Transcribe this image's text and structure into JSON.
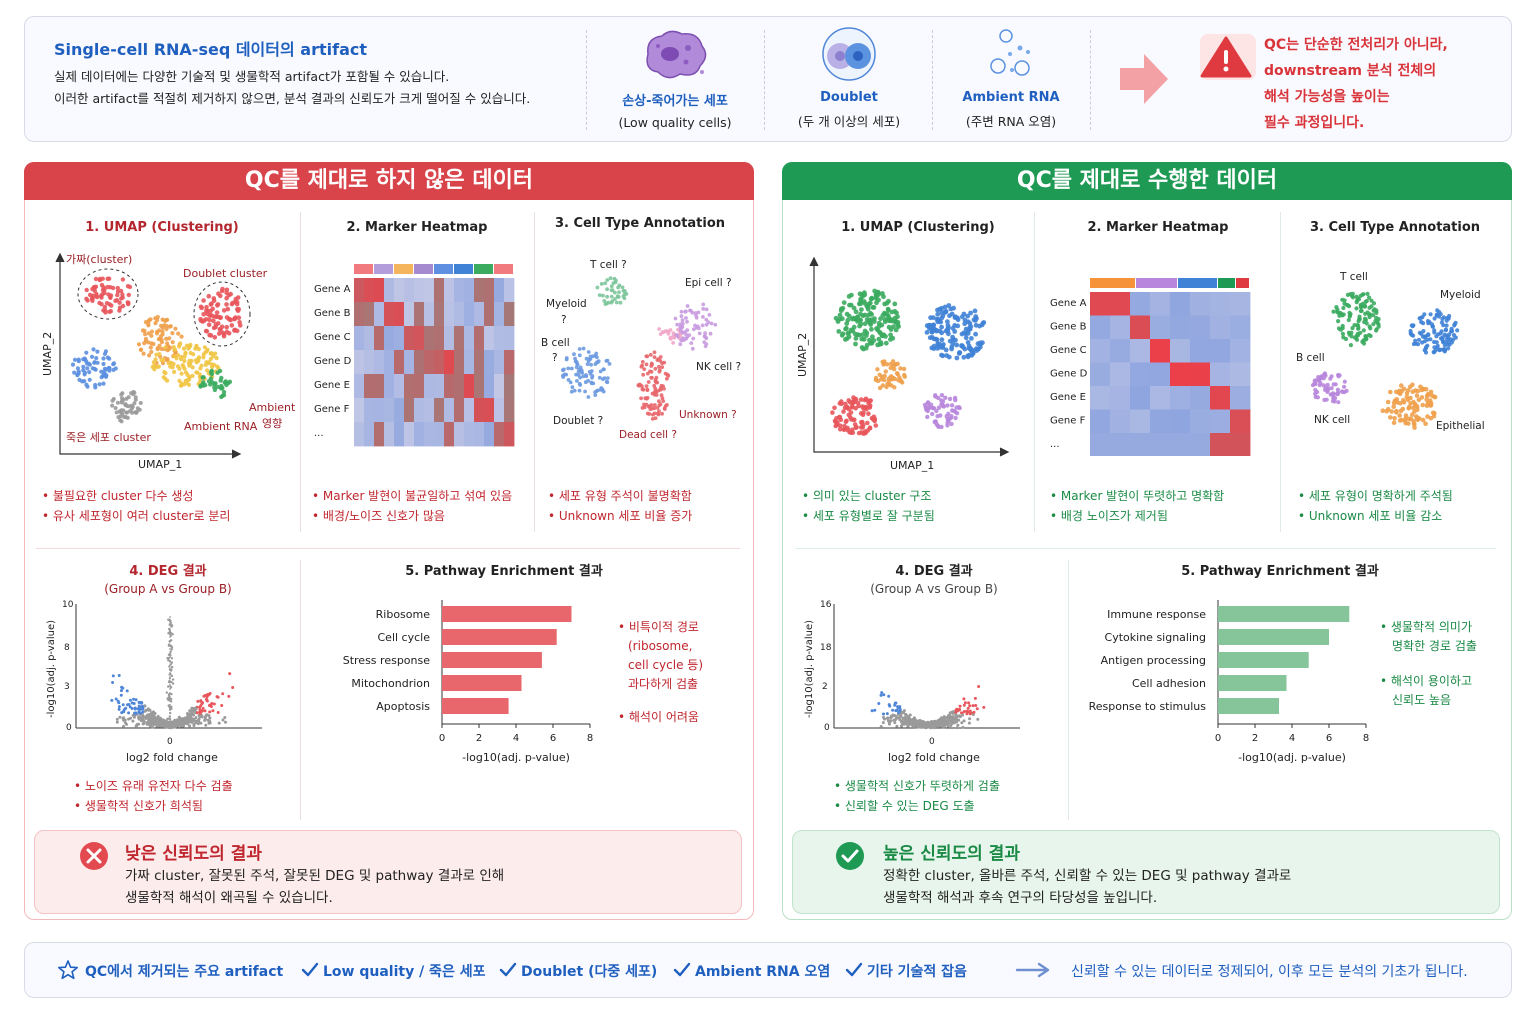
{
  "top": {
    "title": "Single-cell RNA-seq 데이터의 artifact",
    "desc1": "실제 데이터에는 다양한 기술적 및 생물학적 artifact가 포함될 수 있습니다.",
    "desc2": "이러한 artifact를 적절히 제거하지 않으면, 분석 결과의 신뢰도가 크게 떨어질 수 있습니다.",
    "artifacts": [
      {
        "name": "손상-죽어가는 세포",
        "sub": "(Low quality cells)",
        "icon": "damaged-cell-icon"
      },
      {
        "name": "Doublet",
        "sub": "(두 개 이상의 세포)",
        "icon": "doublet-icon"
      },
      {
        "name": "Ambient RNA",
        "sub": "(주변 RNA 오염)",
        "icon": "ambient-rna-icon"
      }
    ],
    "warning": [
      "QC는 단순한 전처리가 아니라,",
      "downstream 분석 전체의",
      "해석 가능성을 높이는",
      "필수 과정입니다."
    ]
  },
  "bad": {
    "banner": "QC를 제대로 하지 않은 데이터",
    "umap_title": "1. UMAP (Clustering)",
    "umap_labels": {
      "fake": "가짜(cluster)",
      "doublet": "Doublet cluster",
      "ambient1": "Ambient",
      "ambient2": "영향",
      "ambient_rna": "Ambient RNA",
      "dead": "죽은 세포 cluster",
      "xlabel": "UMAP_1",
      "ylabel": "UMAP_2"
    },
    "umap_bullets": [
      "• 불필요한 cluster 다수 생성",
      "• 유사 세포형이 여러 cluster로 분리"
    ],
    "heatmap_title": "2. Marker Heatmap",
    "genes": [
      "Gene A",
      "Gene B",
      "Gene C",
      "Gene D",
      "Gene E",
      "Gene F",
      "..."
    ],
    "heatmap_bullets": [
      "• Marker 발현이 불균일하고 섞여 있음",
      "• 배경/노이즈 신호가 많음"
    ],
    "anno_title": "3. Cell Type Annotation",
    "anno_labels": {
      "t": "T cell ?",
      "epi": "Epi cell ?",
      "myeloid": "Myeloid",
      "q1": "?",
      "bcell": "B cell",
      "q2": "?",
      "nk": "NK cell ?",
      "unknown": "Unknown ?",
      "doublet": "Doublet ?",
      "dead": "Dead cell ?"
    },
    "anno_bullets": [
      "• 세포 유형 주석이 불명확함",
      "• Unknown 세포 비율 증가"
    ],
    "deg_title": "4. DEG 결과",
    "deg_sub": "(Group A vs Group B)",
    "deg_xlabel": "log2 fold change",
    "deg_ylabel": "-log10(adj. p-value)",
    "deg_yticks": [
      "10",
      "8",
      "3",
      "0"
    ],
    "deg_xtick": "0",
    "deg_bullets": [
      "• 노이즈 유래 유전자 다수 검출",
      "• 생물학적 신호가 희석됨"
    ],
    "path_title": "5. Pathway Enrichment 결과",
    "path_note": [
      "• 비특이적 경로",
      "(ribosome,",
      "cell cycle 등)",
      "과다하게 검출",
      "• 해석이 어려움"
    ],
    "result_title": "낮은 신뢰도의 결과",
    "result_text1": "가짜 cluster, 잘못된 주석, 잘못된 DEG 및 pathway 결과로 인해",
    "result_text2": "생물학적 해석이 왜곡될 수 있습니다."
  },
  "good": {
    "banner": "QC를 제대로 수행한 데이터",
    "umap_title": "1. UMAP (Clustering)",
    "umap_labels": {
      "xlabel": "UMAP_1",
      "ylabel": "UMAP_2"
    },
    "umap_bullets": [
      "• 의미 있는 cluster 구조",
      "• 세포 유형별로 잘 구분됨"
    ],
    "heatmap_title": "2. Marker Heatmap",
    "genes": [
      "Gene A",
      "Gene B",
      "Gene C",
      "Gene D",
      "Gene E",
      "Gene F",
      "..."
    ],
    "heatmap_bullets": [
      "• Marker 발현이 뚜렷하고 명확함",
      "• 배경 노이즈가 제거됨"
    ],
    "anno_title": "3. Cell Type Annotation",
    "anno_labels": {
      "t": "T cell",
      "myeloid": "Myeloid",
      "bcell": "B cell",
      "nk": "NK cell",
      "epi": "Epithelial"
    },
    "anno_bullets": [
      "• 세포 유형이 명확하게 주석됨",
      "• Unknown 세포 비율 감소"
    ],
    "deg_title": "4. DEG 결과",
    "deg_sub": "(Group A vs Group B)",
    "deg_xlabel": "log2 fold change",
    "deg_ylabel": "-log10(adj. p-value)",
    "deg_yticks": [
      "16",
      "18",
      "2",
      "0"
    ],
    "deg_xtick": "0",
    "deg_bullets": [
      "• 생물학적 신호가 뚜렷하게 검출",
      "• 신뢰할 수 있는 DEG 도출"
    ],
    "path_title": "5. Pathway Enrichment 결과",
    "path_note": [
      "• 생물학적 의미가",
      "명확한 경로 검출",
      "• 해석이 용이하고",
      "신뢰도 높음"
    ],
    "result_title": "높은 신뢰도의 결과",
    "result_text1": "정확한 cluster, 올바른 주석, 신뢰할 수 있는 DEG 및 pathway 결과로",
    "result_text2": "생물학적 해석과 후속 연구의 타당성을 높입니다."
  },
  "chart_data": [
    {
      "type": "bar",
      "categories": [
        "Ribosome",
        "Cell cycle",
        "Stress response",
        "Mitochondrion",
        "Apoptosis"
      ],
      "values": [
        7.0,
        6.2,
        5.4,
        4.3,
        3.6
      ],
      "xlabel": "-log10(adj. p-value)",
      "xlim": [
        0,
        8
      ],
      "xticks": [
        "0",
        "2",
        "4",
        "6",
        "8"
      ],
      "color": "#e8676c"
    },
    {
      "type": "bar",
      "categories": [
        "Immune response",
        "Cytokine signaling",
        "Antigen processing",
        "Cell adhesion",
        "Response to stimulus"
      ],
      "values": [
        7.1,
        6.0,
        4.9,
        3.7,
        3.3
      ],
      "xlabel": "-log10(adj. p-value)",
      "xlim": [
        0,
        8
      ],
      "xticks": [
        "0",
        "2",
        "4",
        "6",
        "8"
      ],
      "color": "#86c59a"
    }
  ],
  "footer": {
    "items": [
      "QC에서 제거되는 주요 artifact",
      "Low quality / 죽은 세포",
      "Doublet (다중 세포)",
      "Ambient RNA 오염",
      "기타 기술적 잡음"
    ],
    "final": "신뢰할 수 있는 데이터로 정제되어, 이후 모든 분석의 기초가 됩니다."
  },
  "colors": {
    "red": "#d9444b",
    "green": "#1f9a54",
    "blue": "#1f5fbf"
  }
}
